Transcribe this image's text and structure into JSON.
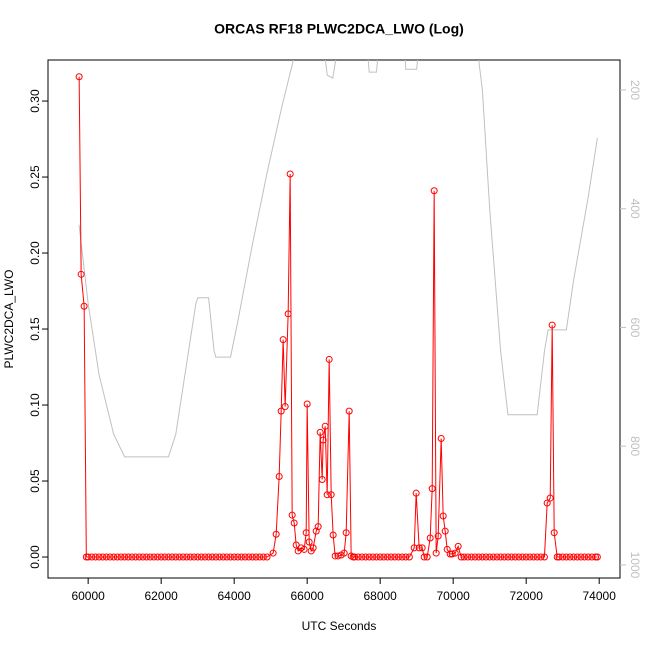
{
  "chart_data": {
    "type": "line",
    "title": "ORCAS RF18 PLWC2DCA_LWO (Log)",
    "x_label": "UTC Seconds",
    "y_label": "PLWC2DCA_LWO",
    "xlim": [
      58900,
      74570
    ],
    "xticks": [
      60000,
      62000,
      64000,
      66000,
      68000,
      70000,
      72000,
      74000
    ],
    "ylim": [
      -0.0138,
      0.327
    ],
    "yticks": [
      {
        "value": 0,
        "label": "0.00"
      },
      0.05,
      {
        "value": 0.1,
        "label": "0.10"
      },
      0.15,
      {
        "value": 0.2,
        "label": "0.20"
      },
      0.25,
      {
        "value": 0.3,
        "label": "0.30"
      }
    ],
    "y2lim": [
      1022,
      149.5
    ],
    "y2ticks": [
      200,
      400,
      600,
      800,
      1000
    ],
    "series": [
      {
        "color": "#ff0000",
        "markers": true,
        "x": [
          59753,
          59808,
          59890,
          59950,
          60000,
          60100,
          60200,
          60300,
          60400,
          60500,
          60600,
          60700,
          60800,
          60900,
          61000,
          61100,
          61200,
          61300,
          61400,
          61500,
          61600,
          61700,
          61800,
          61900,
          62000,
          62100,
          62200,
          62300,
          62400,
          62500,
          62600,
          62700,
          62800,
          62900,
          63000,
          63100,
          63200,
          63300,
          63400,
          63500,
          63600,
          63700,
          63800,
          63900,
          64000,
          64100,
          64200,
          64300,
          64400,
          64500,
          64600,
          64700,
          64800,
          64900,
          65068,
          65151,
          65233,
          65288,
          65342,
          65397,
          65479,
          65534,
          65589,
          65644,
          65699,
          65753,
          65836,
          65918,
          65973,
          66000,
          66055,
          66110,
          66164,
          66247,
          66301,
          66356,
          66411,
          66438,
          66493,
          66548,
          66603,
          66658,
          66712,
          66767,
          66849,
          66932,
          67014,
          67068,
          67151,
          67205,
          67260,
          67300,
          67400,
          67500,
          67600,
          67700,
          67800,
          67900,
          68000,
          68100,
          68200,
          68300,
          68400,
          68500,
          68600,
          68700,
          68800,
          68932,
          68986,
          69068,
          69151,
          69205,
          69288,
          69370,
          69425,
          69479,
          69534,
          69589,
          69671,
          69726,
          69781,
          69836,
          69918,
          69973,
          70055,
          70137,
          70219,
          70300,
          70400,
          70500,
          70600,
          70700,
          70800,
          70900,
          71000,
          71100,
          71200,
          71300,
          71400,
          71500,
          71600,
          71700,
          71800,
          71900,
          72000,
          72100,
          72200,
          72300,
          72400,
          72500,
          72575,
          72658,
          72712,
          72767,
          72849,
          72900,
          73000,
          73100,
          73200,
          73300,
          73400,
          73500,
          73600,
          73700,
          73800,
          73900,
          73950
        ],
        "values": [
          0.316,
          0.186,
          0.165,
          0,
          0,
          0,
          0,
          0,
          0,
          0,
          0,
          0,
          0,
          0,
          0,
          0,
          0,
          0,
          0,
          0,
          0,
          0,
          0,
          0,
          0,
          0,
          0,
          0,
          0,
          0,
          0,
          0,
          0,
          0,
          0,
          0,
          0,
          0,
          0,
          0,
          0,
          0,
          0,
          0,
          0,
          0,
          0,
          0,
          0,
          0,
          0,
          0,
          0,
          0,
          0.0026,
          0.015,
          0.053,
          0.096,
          0.143,
          0.099,
          0.16,
          0.252,
          0.0276,
          0.0224,
          0.0079,
          0.004,
          0.006,
          0.005,
          0.016,
          0.1007,
          0.0099,
          0.004,
          0.006,
          0.017,
          0.02,
          0.082,
          0.051,
          0.077,
          0.086,
          0.041,
          0.13,
          0.041,
          0.0145,
          0.0007,
          0.0007,
          0.0013,
          0.0026,
          0.016,
          0.096,
          0.0007,
          0,
          0,
          0,
          0,
          0,
          0,
          0,
          0,
          0,
          0,
          0,
          0,
          0,
          0,
          0,
          0,
          0,
          0.006,
          0.042,
          0.006,
          0.006,
          0,
          0,
          0.0125,
          0.045,
          0.241,
          0.0026,
          0.0138,
          0.078,
          0.027,
          0.017,
          0.005,
          0.002,
          0.002,
          0.0026,
          0.007,
          0,
          0,
          0,
          0,
          0,
          0,
          0,
          0,
          0,
          0,
          0,
          0,
          0,
          0,
          0,
          0,
          0,
          0,
          0,
          0,
          0,
          0,
          0,
          0,
          0.0355,
          0.0388,
          0.1526,
          0.016,
          0,
          0,
          0,
          0,
          0,
          0,
          0,
          0,
          0,
          0,
          0,
          0,
          0
        ]
      },
      {
        "color": "#c0c0c0",
        "axis": "y2",
        "x": [
          59750,
          60000,
          60300,
          60700,
          61000,
          62200,
          62400,
          62700,
          62950,
          63000,
          63300,
          63450,
          63500,
          63900,
          64100,
          64500,
          64900,
          65300,
          65700,
          66300,
          66480,
          66550,
          66700,
          66780,
          66900,
          67600,
          67700,
          67900,
          67950,
          68100,
          68650,
          68700,
          69000,
          69050,
          69300,
          70600,
          70800,
          71000,
          71300,
          71500,
          72300,
          72500,
          72600,
          73100,
          73300,
          73700,
          73950
        ],
        "values": [
          427,
          560,
          680,
          780,
          818,
          818,
          780,
          660,
          560,
          550,
          550,
          640,
          650,
          650,
          590,
          460,
          340,
          230,
          130,
          100,
          140,
          175,
          180,
          150,
          100,
          100,
          170,
          170,
          130,
          100,
          100,
          165,
          165,
          130,
          100,
          100,
          200,
          400,
          640,
          747,
          747,
          640,
          604,
          604,
          520,
          380,
          281
        ]
      }
    ]
  }
}
